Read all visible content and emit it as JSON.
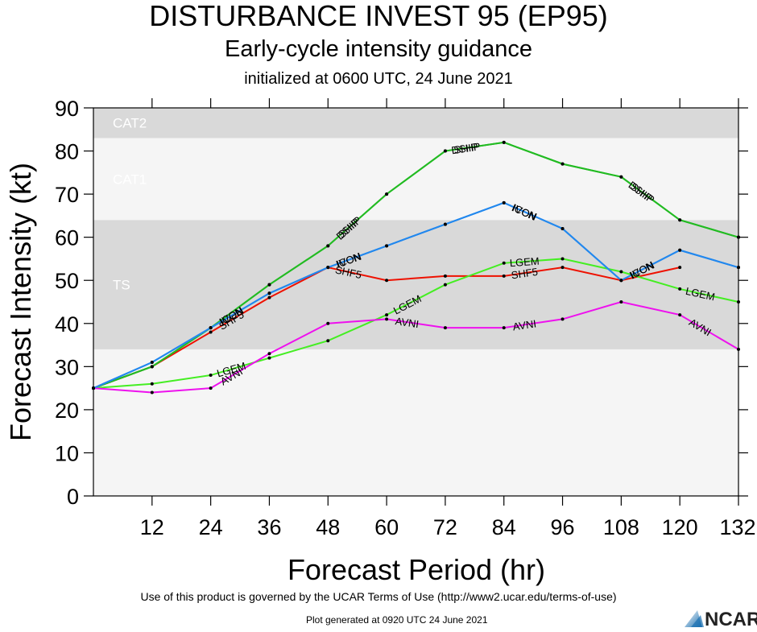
{
  "header": {
    "title": "DISTURBANCE INVEST 95 (EP95)",
    "subtitle": "Early-cycle intensity guidance",
    "initialized": "initialized at 0600 UTC, 24 June 2021"
  },
  "footer": {
    "terms": "Use of this product is governed by the UCAR Terms of Use (http://www2.ucar.edu/terms-of-use)",
    "generated": "Plot generated at 0920 UTC   24 June 2021",
    "logo_text": "NCAR"
  },
  "chart_data": {
    "type": "line",
    "xlabel": "Forecast Period (hr)",
    "ylabel": "Forecast Intensity (kt)",
    "xlim": [
      0,
      132
    ],
    "ylim": [
      0,
      90
    ],
    "x_ticks": [
      12,
      24,
      36,
      48,
      60,
      72,
      84,
      96,
      108,
      120,
      132
    ],
    "y_ticks": [
      0,
      10,
      20,
      30,
      40,
      50,
      60,
      70,
      80,
      90
    ],
    "grid": false,
    "categories_bands": [
      {
        "label": "TS",
        "from": 34,
        "to": 64,
        "color": "#d9d9d9"
      },
      {
        "label": "CAT1",
        "from": 64,
        "to": 83,
        "color": "#f5f5f5"
      },
      {
        "label": "CAT2",
        "from": 83,
        "to": 90,
        "color": "#d9d9d9"
      }
    ],
    "below_band_color": "#f5f5f5",
    "series": [
      {
        "name": "SHF5",
        "color": "#ee1100",
        "x": [
          0,
          12,
          24,
          36,
          48,
          60,
          72,
          84,
          96,
          108,
          120
        ],
        "values": [
          25,
          30,
          38,
          46,
          53,
          50,
          51,
          51,
          53,
          50,
          53
        ],
        "label_at": [
          24,
          48,
          84
        ]
      },
      {
        "name": "DSHP",
        "color": "#22bb22",
        "x": [
          0,
          12,
          24,
          36,
          48,
          60,
          72,
          84,
          96,
          108,
          120,
          132
        ],
        "values": [
          25,
          30,
          39,
          49,
          58,
          70,
          80,
          82,
          77,
          74,
          64,
          60
        ],
        "label_at": [
          48,
          72,
          108
        ]
      },
      {
        "name": "SHIP",
        "color": "#22bb22",
        "x": [
          0,
          12,
          24,
          36,
          48,
          60,
          72,
          84,
          96,
          108,
          120,
          132
        ],
        "values": [
          25,
          30,
          39,
          49,
          58,
          70,
          80,
          82,
          77,
          74,
          64,
          60
        ],
        "label_at": [
          48,
          72,
          108
        ]
      },
      {
        "name": "LGEM",
        "color": "#44ee22",
        "x": [
          0,
          12,
          24,
          36,
          48,
          60,
          72,
          84,
          96,
          108,
          120,
          132
        ],
        "values": [
          25,
          26,
          28,
          32,
          36,
          42,
          49,
          54,
          55,
          52,
          48,
          45
        ],
        "label_at": [
          24,
          60,
          84,
          120
        ]
      },
      {
        "name": "AVNI",
        "color": "#ee11ee",
        "x": [
          0,
          12,
          24,
          36,
          48,
          60,
          72,
          84,
          96,
          108,
          120,
          132
        ],
        "values": [
          25,
          24,
          25,
          33,
          40,
          41,
          39,
          39,
          41,
          45,
          42,
          34
        ],
        "label_at": [
          24,
          60,
          84,
          120
        ]
      },
      {
        "name": "ICON",
        "color": "#2288ee",
        "x": [
          0,
          12,
          24,
          36,
          48,
          60,
          72,
          84,
          96,
          108,
          120,
          132
        ],
        "values": [
          25,
          31,
          39,
          47,
          53,
          58,
          63,
          68,
          62,
          50,
          57,
          53
        ],
        "label_at": [
          24,
          48,
          84,
          108
        ]
      },
      {
        "name": "IVCN",
        "color": "#2288ee",
        "x": [
          0,
          12,
          24,
          36,
          48,
          60,
          72,
          84,
          96,
          108,
          120,
          132
        ],
        "values": [
          25,
          31,
          39,
          47,
          53,
          58,
          63,
          68,
          62,
          50,
          57,
          53
        ],
        "label_at": [
          24,
          48,
          84,
          108
        ]
      }
    ]
  }
}
